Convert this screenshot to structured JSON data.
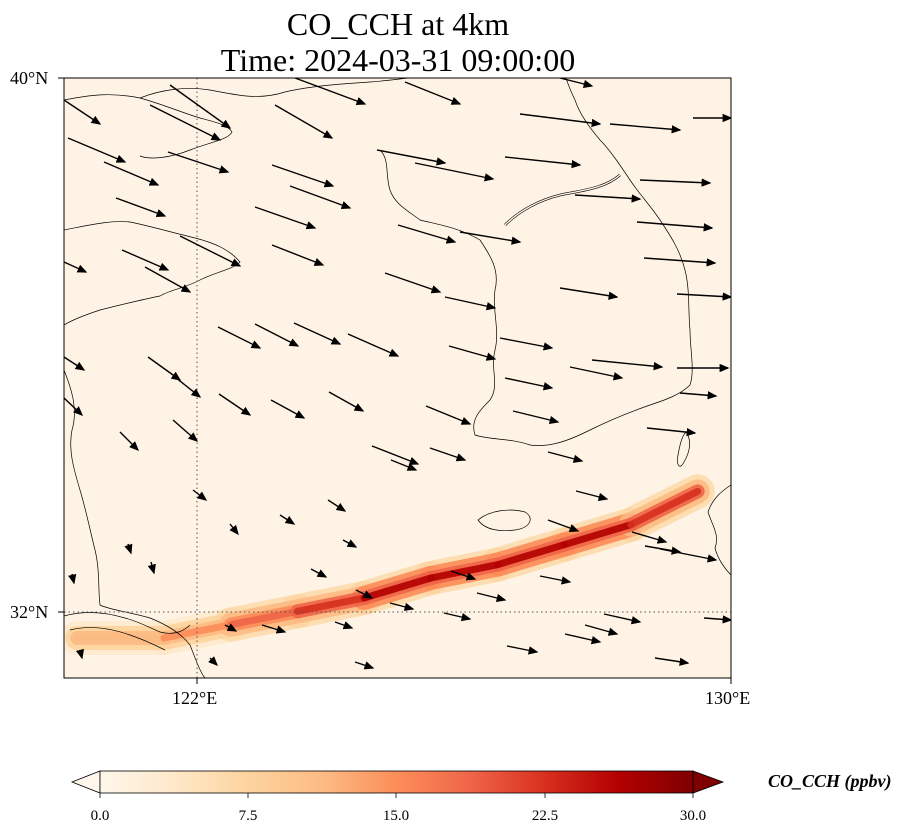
{
  "title": {
    "line1": "CO_CCH at 4km",
    "line2": "Time: 2024-03-31 09:00:00"
  },
  "axes": {
    "y_ticks": [
      "40°N",
      "32°N"
    ],
    "x_ticks": [
      "122°E",
      "130°E"
    ]
  },
  "colorbar": {
    "label": "CO_CCH (ppbv)",
    "ticks": [
      "0.0",
      "7.5",
      "15.0",
      "22.5",
      "30.0"
    ],
    "min": 0,
    "max": 30,
    "extend": "both",
    "colormap": "OrRd",
    "colors": [
      "#fff7ec",
      "#fee8c8",
      "#fdd49e",
      "#fdbb84",
      "#fc8d59",
      "#ef6548",
      "#d7301f",
      "#b30000",
      "#7f0000"
    ]
  },
  "chart_data": {
    "type": "heatmap",
    "title": "CO_CCH at 4km\nTime: 2024-03-31 09:00:00",
    "variable": "CO_CCH",
    "units": "ppbv",
    "lon_range": [
      120,
      130
    ],
    "lat_range": [
      31,
      40
    ],
    "lon_ticks": [
      122,
      130
    ],
    "lat_ticks": [
      40,
      32
    ],
    "color_range": [
      0,
      30
    ],
    "plume": {
      "description_points_lonlat_value": [
        [
          120.2,
          31.6,
          12
        ],
        [
          121.5,
          31.6,
          14
        ],
        [
          122.5,
          31.8,
          18
        ],
        [
          123.5,
          32.0,
          22
        ],
        [
          124.5,
          32.2,
          24
        ],
        [
          125.5,
          32.5,
          25
        ],
        [
          126.5,
          32.7,
          26
        ],
        [
          127.5,
          33.0,
          25
        ],
        [
          128.5,
          33.3,
          24
        ],
        [
          129.5,
          33.8,
          20
        ]
      ]
    },
    "wind_vectors": "arrows indicate wind direction, generally west-northwest to east-southeast",
    "grid": "dotted lines at 122°E and 32°N"
  }
}
